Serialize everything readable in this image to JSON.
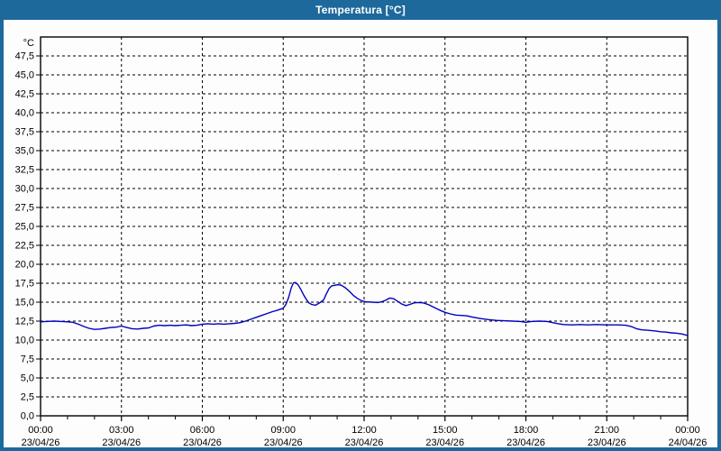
{
  "window": {
    "title": "Temperatura [°C]",
    "accent_color": "#1e699c",
    "background_color": "#fdfdfd"
  },
  "chart_data": {
    "type": "line",
    "title": "Temperatura [°C]",
    "unit_label": "°C",
    "grid": "dashed",
    "legend": "none",
    "series_color": "#0000bf",
    "axis_color": "#000000",
    "y_axis": {
      "range": [
        0,
        50
      ],
      "label_step": 2.5,
      "labels": [
        "47,5",
        "45,0",
        "42,5",
        "40,0",
        "37,5",
        "35,0",
        "32,5",
        "30,0",
        "27,5",
        "25,0",
        "22,5",
        "20,0",
        "17,5",
        "15,0",
        "12,5",
        "10,0",
        "7,5",
        "5,0",
        "2,5",
        "0,0"
      ],
      "label_values": [
        47.5,
        45.0,
        42.5,
        40.0,
        37.5,
        35.0,
        32.5,
        30.0,
        27.5,
        25.0,
        22.5,
        20.0,
        17.5,
        15.0,
        12.5,
        10.0,
        7.5,
        5.0,
        2.5,
        0.0
      ]
    },
    "x_axis": {
      "range_hours": [
        0,
        24
      ],
      "major_step_hours": 3,
      "minor_step_hours": 1,
      "ticks": [
        {
          "hour": 0,
          "time": "00:00",
          "date": "23/04/26"
        },
        {
          "hour": 3,
          "time": "03:00",
          "date": "23/04/26"
        },
        {
          "hour": 6,
          "time": "06:00",
          "date": "23/04/26"
        },
        {
          "hour": 9,
          "time": "09:00",
          "date": "23/04/26"
        },
        {
          "hour": 12,
          "time": "12:00",
          "date": "23/04/26"
        },
        {
          "hour": 15,
          "time": "15:00",
          "date": "23/04/26"
        },
        {
          "hour": 18,
          "time": "18:00",
          "date": "23/04/26"
        },
        {
          "hour": 21,
          "time": "21:00",
          "date": "23/04/26"
        },
        {
          "hour": 24,
          "time": "00:00",
          "date": "24/04/26"
        }
      ]
    },
    "points": [
      [
        0.0,
        12.4
      ],
      [
        0.2,
        12.45
      ],
      [
        0.5,
        12.5
      ],
      [
        0.8,
        12.45
      ],
      [
        1.0,
        12.4
      ],
      [
        1.2,
        12.35
      ],
      [
        1.4,
        12.1
      ],
      [
        1.6,
        11.8
      ],
      [
        1.8,
        11.55
      ],
      [
        2.0,
        11.4
      ],
      [
        2.2,
        11.45
      ],
      [
        2.4,
        11.55
      ],
      [
        2.6,
        11.65
      ],
      [
        2.8,
        11.7
      ],
      [
        3.0,
        11.85
      ],
      [
        3.2,
        11.65
      ],
      [
        3.4,
        11.5
      ],
      [
        3.6,
        11.45
      ],
      [
        3.8,
        11.55
      ],
      [
        4.0,
        11.6
      ],
      [
        4.2,
        11.85
      ],
      [
        4.4,
        11.95
      ],
      [
        4.6,
        11.9
      ],
      [
        4.8,
        11.95
      ],
      [
        5.0,
        11.9
      ],
      [
        5.2,
        11.95
      ],
      [
        5.4,
        12.0
      ],
      [
        5.6,
        11.9
      ],
      [
        5.8,
        11.95
      ],
      [
        6.0,
        12.1
      ],
      [
        6.2,
        12.15
      ],
      [
        6.4,
        12.1
      ],
      [
        6.6,
        12.15
      ],
      [
        6.8,
        12.1
      ],
      [
        7.0,
        12.15
      ],
      [
        7.2,
        12.2
      ],
      [
        7.4,
        12.3
      ],
      [
        7.6,
        12.5
      ],
      [
        7.8,
        12.75
      ],
      [
        8.0,
        13.0
      ],
      [
        8.2,
        13.25
      ],
      [
        8.4,
        13.5
      ],
      [
        8.6,
        13.75
      ],
      [
        8.8,
        13.95
      ],
      [
        9.0,
        14.2
      ],
      [
        9.1,
        14.7
      ],
      [
        9.2,
        15.6
      ],
      [
        9.3,
        16.9
      ],
      [
        9.38,
        17.55
      ],
      [
        9.45,
        17.6
      ],
      [
        9.55,
        17.3
      ],
      [
        9.65,
        16.7
      ],
      [
        9.75,
        16.0
      ],
      [
        9.85,
        15.4
      ],
      [
        9.95,
        14.9
      ],
      [
        10.05,
        14.7
      ],
      [
        10.2,
        14.6
      ],
      [
        10.35,
        14.9
      ],
      [
        10.5,
        15.3
      ],
      [
        10.6,
        16.1
      ],
      [
        10.7,
        16.8
      ],
      [
        10.8,
        17.15
      ],
      [
        11.0,
        17.3
      ],
      [
        11.15,
        17.25
      ],
      [
        11.3,
        16.9
      ],
      [
        11.45,
        16.45
      ],
      [
        11.6,
        15.9
      ],
      [
        11.75,
        15.5
      ],
      [
        11.9,
        15.2
      ],
      [
        12.05,
        15.05
      ],
      [
        12.3,
        15.0
      ],
      [
        12.5,
        14.95
      ],
      [
        12.65,
        15.05
      ],
      [
        12.8,
        15.25
      ],
      [
        12.95,
        15.55
      ],
      [
        13.1,
        15.45
      ],
      [
        13.25,
        15.1
      ],
      [
        13.4,
        14.75
      ],
      [
        13.55,
        14.55
      ],
      [
        13.7,
        14.7
      ],
      [
        13.85,
        14.9
      ],
      [
        14.0,
        14.95
      ],
      [
        14.2,
        14.9
      ],
      [
        14.4,
        14.65
      ],
      [
        14.6,
        14.3
      ],
      [
        14.8,
        13.95
      ],
      [
        15.0,
        13.65
      ],
      [
        15.2,
        13.45
      ],
      [
        15.4,
        13.3
      ],
      [
        15.6,
        13.25
      ],
      [
        15.8,
        13.2
      ],
      [
        16.0,
        13.05
      ],
      [
        16.3,
        12.85
      ],
      [
        16.6,
        12.7
      ],
      [
        16.9,
        12.6
      ],
      [
        17.2,
        12.55
      ],
      [
        17.5,
        12.5
      ],
      [
        17.8,
        12.45
      ],
      [
        18.0,
        12.35
      ],
      [
        18.2,
        12.45
      ],
      [
        18.5,
        12.5
      ],
      [
        18.8,
        12.45
      ],
      [
        19.0,
        12.3
      ],
      [
        19.2,
        12.15
      ],
      [
        19.4,
        12.05
      ],
      [
        19.7,
        12.0
      ],
      [
        20.0,
        12.05
      ],
      [
        20.3,
        12.0
      ],
      [
        20.6,
        12.05
      ],
      [
        21.0,
        12.0
      ],
      [
        21.4,
        12.0
      ],
      [
        21.7,
        11.95
      ],
      [
        21.9,
        11.8
      ],
      [
        22.1,
        11.5
      ],
      [
        22.3,
        11.35
      ],
      [
        22.5,
        11.3
      ],
      [
        22.8,
        11.2
      ],
      [
        23.0,
        11.1
      ],
      [
        23.2,
        11.05
      ],
      [
        23.4,
        10.95
      ],
      [
        23.6,
        10.9
      ],
      [
        23.8,
        10.8
      ],
      [
        24.0,
        10.6
      ]
    ]
  }
}
